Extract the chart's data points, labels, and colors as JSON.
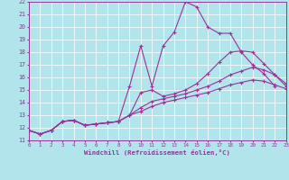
{
  "xlabel": "Windchill (Refroidissement éolien,°C)",
  "xlim": [
    0,
    23
  ],
  "ylim": [
    11,
    22
  ],
  "xticks": [
    0,
    1,
    2,
    3,
    4,
    5,
    6,
    7,
    8,
    9,
    10,
    11,
    12,
    13,
    14,
    15,
    16,
    17,
    18,
    19,
    20,
    21,
    22,
    23
  ],
  "yticks": [
    11,
    12,
    13,
    14,
    15,
    16,
    17,
    18,
    19,
    20,
    21,
    22
  ],
  "bg_color": "#b2e4ec",
  "grid_color": "#ffffff",
  "line_color": "#993399",
  "line1_y": [
    11.8,
    11.5,
    11.8,
    12.5,
    12.6,
    12.2,
    12.3,
    12.4,
    12.5,
    15.3,
    18.5,
    15.3,
    18.5,
    19.6,
    22.0,
    21.6,
    20.0,
    19.5,
    19.5,
    18.0,
    17.0,
    16.3,
    15.3,
    null
  ],
  "line2_y": [
    11.8,
    11.5,
    11.8,
    12.5,
    12.6,
    12.2,
    12.3,
    12.4,
    12.5,
    13.0,
    14.8,
    15.0,
    14.5,
    14.7,
    15.0,
    15.5,
    16.3,
    17.2,
    18.0,
    18.1,
    18.0,
    17.1,
    16.2,
    15.3
  ],
  "line3_y": [
    11.8,
    11.5,
    11.8,
    12.5,
    12.6,
    12.2,
    12.3,
    12.4,
    12.5,
    13.0,
    13.6,
    14.1,
    14.3,
    14.5,
    14.7,
    15.0,
    15.3,
    15.7,
    16.2,
    16.5,
    16.8,
    16.6,
    16.2,
    15.5
  ],
  "line4_y": [
    11.8,
    11.5,
    11.8,
    12.5,
    12.6,
    12.2,
    12.3,
    12.4,
    12.5,
    13.0,
    13.3,
    13.7,
    14.0,
    14.2,
    14.4,
    14.6,
    14.8,
    15.1,
    15.4,
    15.6,
    15.8,
    15.7,
    15.4,
    15.1
  ]
}
